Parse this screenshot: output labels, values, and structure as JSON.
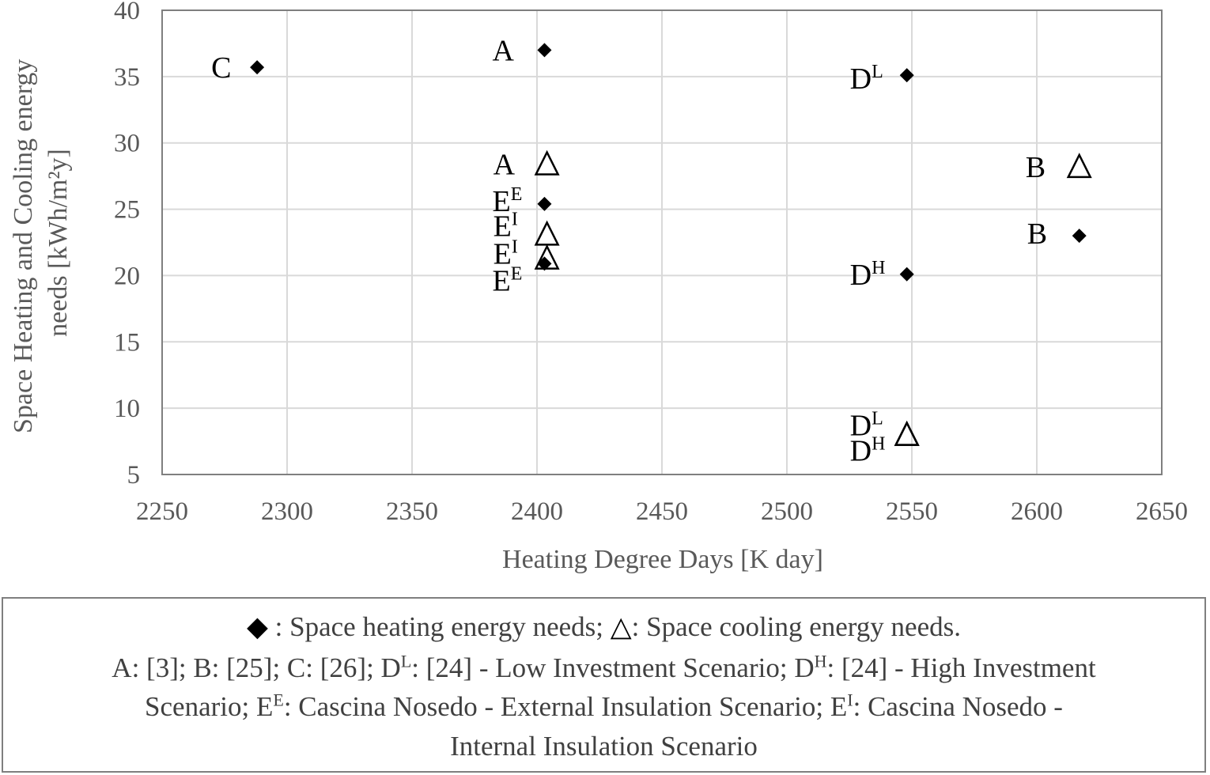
{
  "chart_data": {
    "type": "scatter",
    "title": "",
    "xlabel": "Heating Degree Days [K day]",
    "ylabel_lines": [
      "Space Heating and Cooling energy",
      "needs [kWh/m²y]"
    ],
    "xlim": [
      2250,
      2650
    ],
    "ylim": [
      5,
      40
    ],
    "x_ticks": [
      2250,
      2300,
      2350,
      2400,
      2450,
      2500,
      2550,
      2600,
      2650
    ],
    "y_ticks": [
      5,
      10,
      15,
      20,
      25,
      30,
      35,
      40
    ],
    "grid": true,
    "series": [
      {
        "marker": "diamond",
        "points": [
          {
            "label": "C",
            "sup": "",
            "x": 2288,
            "y": 35.7
          },
          {
            "label": "A",
            "sup": "",
            "x": 2403,
            "y": 37.0
          },
          {
            "label": "D",
            "sup": "L",
            "x": 2548,
            "y": 35.1
          },
          {
            "label": "E",
            "sup": "E",
            "x": 2403,
            "y": 25.4
          },
          {
            "label": "E",
            "sup": "E",
            "x": 2403,
            "y": 20.9
          },
          {
            "label": "B",
            "sup": "",
            "x": 2617,
            "y": 23.0
          },
          {
            "label": "D",
            "sup": "H",
            "x": 2548,
            "y": 20.1
          }
        ]
      },
      {
        "marker": "triangle",
        "points": [
          {
            "label": "A",
            "sup": "",
            "x": 2404,
            "y": 28.4
          },
          {
            "label": "B",
            "sup": "",
            "x": 2617,
            "y": 28.2
          },
          {
            "label": "E",
            "sup": "I",
            "x": 2404,
            "y": 23.1
          },
          {
            "label": "E",
            "sup": "I",
            "x": 2404,
            "y": 21.3
          },
          {
            "label": "D",
            "sup": "L",
            "x": 2548,
            "y": 8.0
          },
          {
            "label": "D",
            "sup": "H",
            "x": 2548,
            "y": 8.0
          }
        ]
      }
    ]
  },
  "legend": {
    "heating_symbol": "◆",
    "heating_text": " : Space heating energy needs; ",
    "cooling_symbol": "△",
    "cooling_text": ": Space cooling energy needs.",
    "ref_a": "A: [3]; B: [25]; C: [26]; D",
    "sup_l": "L",
    "ref_dl": ": [24] - Low Investment Scenario; D",
    "sup_h": "H",
    "ref_dh": ": [24] - High Investment",
    "ref_scen": "Scenario; E",
    "sup_e": "E",
    "ref_ee": ": Cascina Nosedo - External Insulation Scenario; E",
    "sup_i": "I",
    "ref_ei": ": Cascina Nosedo -",
    "ref_last": "Internal Insulation Scenario"
  }
}
